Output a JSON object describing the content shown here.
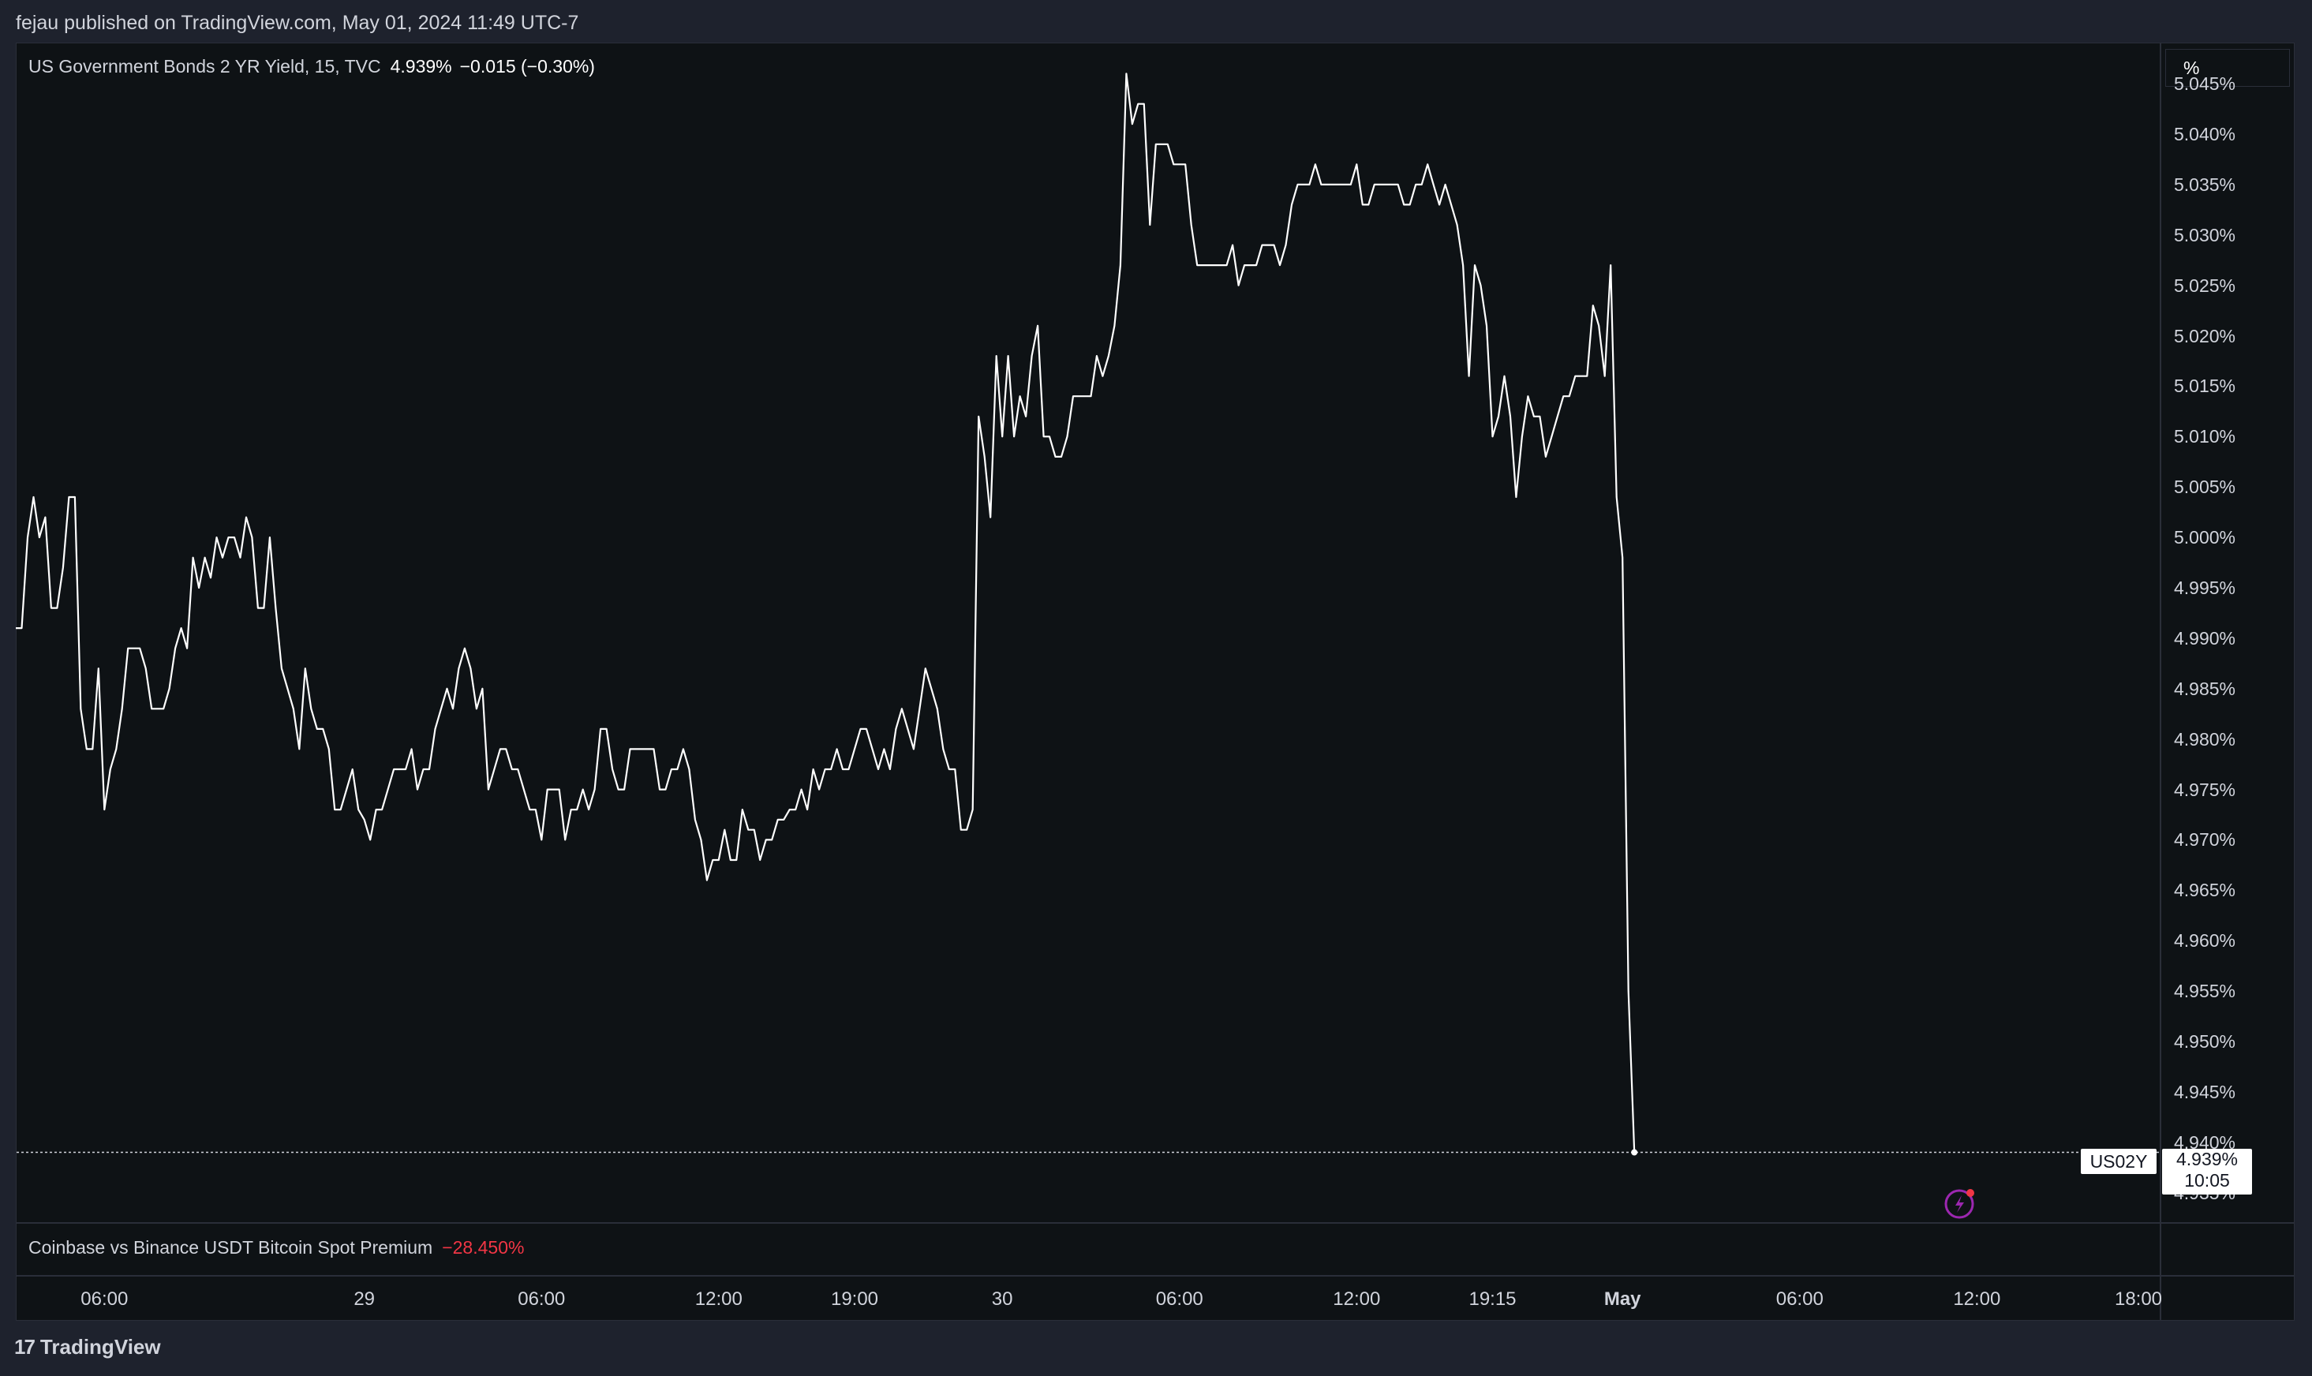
{
  "header": {
    "published": "fejau published on TradingView.com, May 01, 2024 11:49 UTC-7"
  },
  "legend": {
    "symbol": "US Government Bonds 2 YR Yield, 15, TVC",
    "value": "4.939%",
    "change": "−0.015 (−0.30%)"
  },
  "unit_label": "%",
  "indicator": {
    "name": "Coinbase vs Binance USDT Bitcoin Spot Premium",
    "value": "−28.450%"
  },
  "price_tag": {
    "symbol": "US02Y",
    "price": "4.939%",
    "countdown": "10:05"
  },
  "footer": {
    "brand": "TradingView"
  },
  "icons": [
    "tradingview-logo-icon",
    "flash-alert-icon"
  ],
  "colors": {
    "background": "#0e1215",
    "line": "#ffffff",
    "negative": "#f23645",
    "alert_icon": "#9c27b0"
  },
  "chart_data": {
    "type": "line",
    "title": "US Government Bonds 2 YR Yield, 15, TVC",
    "ylim": [
      4.932,
      5.049
    ],
    "y_ticks": [
      "5.045%",
      "5.040%",
      "5.035%",
      "5.030%",
      "5.025%",
      "5.020%",
      "5.015%",
      "5.010%",
      "5.005%",
      "5.000%",
      "4.995%",
      "4.990%",
      "4.985%",
      "4.980%",
      "4.975%",
      "4.970%",
      "4.965%",
      "4.960%",
      "4.955%",
      "4.950%",
      "4.945%",
      "4.940%",
      "4.935%"
    ],
    "x_ticks": [
      {
        "label": "06:00",
        "bar": 15
      },
      {
        "label": "29",
        "bar": 59
      },
      {
        "label": "06:00",
        "bar": 89
      },
      {
        "label": "12:00",
        "bar": 119
      },
      {
        "label": "19:00",
        "bar": 142
      },
      {
        "label": "30",
        "bar": 167
      },
      {
        "label": "06:00",
        "bar": 197
      },
      {
        "label": "12:00",
        "bar": 227
      },
      {
        "label": "19:15",
        "bar": 250
      },
      {
        "label": "May",
        "bar": 272,
        "bold": true
      },
      {
        "label": "06:00",
        "bar": 302
      },
      {
        "label": "12:00",
        "bar": 332
      },
      {
        "label": "18:00",
        "bar": 362
      }
    ],
    "last_bar": 330,
    "series": [
      {
        "values": [
          4.991,
          4.991,
          5.0,
          5.004,
          5.0,
          5.002,
          4.993,
          4.993,
          4.997,
          5.004,
          5.004,
          4.983,
          4.979,
          4.979,
          4.987,
          4.973,
          4.977,
          4.979,
          4.983,
          4.989,
          4.989,
          4.989,
          4.987,
          4.983,
          4.983,
          4.983,
          4.985,
          4.989,
          4.991,
          4.989,
          4.998,
          4.995,
          4.998,
          4.996,
          5.0,
          4.998,
          5.0,
          5.0,
          4.998,
          5.002,
          5.0,
          4.993,
          4.993,
          5.0,
          4.993,
          4.987,
          4.985,
          4.983,
          4.979,
          4.987,
          4.983,
          4.981,
          4.981,
          4.979,
          4.973,
          4.973,
          4.975,
          4.977,
          4.973,
          4.972,
          4.97,
          4.973,
          4.973,
          4.975,
          4.977,
          4.977,
          4.977,
          4.979,
          4.975,
          4.977,
          4.977,
          4.981,
          4.983,
          4.985,
          4.983,
          4.987,
          4.989,
          4.987,
          4.983,
          4.985,
          4.975,
          4.977,
          4.979,
          4.979,
          4.977,
          4.977,
          4.975,
          4.973,
          4.973,
          4.97,
          4.975,
          4.975,
          4.975,
          4.97,
          4.973,
          4.973,
          4.975,
          4.973,
          4.975,
          4.981,
          4.981,
          4.977,
          4.975,
          4.975,
          4.979,
          4.979,
          4.979,
          4.979,
          4.979,
          4.975,
          4.975,
          4.977,
          4.977,
          4.979,
          4.977,
          4.972,
          4.97,
          4.966,
          4.968,
          4.968,
          4.971,
          4.968,
          4.968,
          4.973,
          4.971,
          4.971,
          4.968,
          4.97,
          4.97,
          4.972,
          4.972,
          4.973,
          4.973,
          4.975,
          4.973,
          4.977,
          4.975,
          4.977,
          4.977,
          4.979,
          4.977,
          4.977,
          4.979,
          4.981,
          4.981,
          4.979,
          4.977,
          4.979,
          4.977,
          4.981,
          4.983,
          4.981,
          4.979,
          4.983,
          4.987,
          4.985,
          4.983,
          4.979,
          4.977,
          4.977,
          4.971,
          4.971,
          4.973,
          5.012,
          5.008,
          5.002,
          5.018,
          5.01,
          5.018,
          5.01,
          5.014,
          5.012,
          5.018,
          5.021,
          5.01,
          5.01,
          5.008,
          5.008,
          5.01,
          5.014,
          5.014,
          5.014,
          5.014,
          5.018,
          5.016,
          5.018,
          5.021,
          5.027,
          5.046,
          5.041,
          5.043,
          5.043,
          5.031,
          5.039,
          5.039,
          5.039,
          5.037,
          5.037,
          5.037,
          5.031,
          5.027,
          5.027,
          5.027,
          5.027,
          5.027,
          5.027,
          5.029,
          5.025,
          5.027,
          5.027,
          5.027,
          5.029,
          5.029,
          5.029,
          5.027,
          5.029,
          5.033,
          5.035,
          5.035,
          5.035,
          5.037,
          5.035,
          5.035,
          5.035,
          5.035,
          5.035,
          5.035,
          5.037,
          5.033,
          5.033,
          5.035,
          5.035,
          5.035,
          5.035,
          5.035,
          5.033,
          5.033,
          5.035,
          5.035,
          5.037,
          5.035,
          5.033,
          5.035,
          5.033,
          5.031,
          5.027,
          5.016,
          5.027,
          5.025,
          5.021,
          5.01,
          5.012,
          5.016,
          5.012,
          5.004,
          5.01,
          5.014,
          5.012,
          5.012,
          5.008,
          5.01,
          5.012,
          5.014,
          5.014,
          5.016,
          5.016,
          5.016,
          5.023,
          5.021,
          5.016,
          5.027,
          5.004,
          4.998,
          4.955,
          4.939
        ]
      }
    ]
  }
}
